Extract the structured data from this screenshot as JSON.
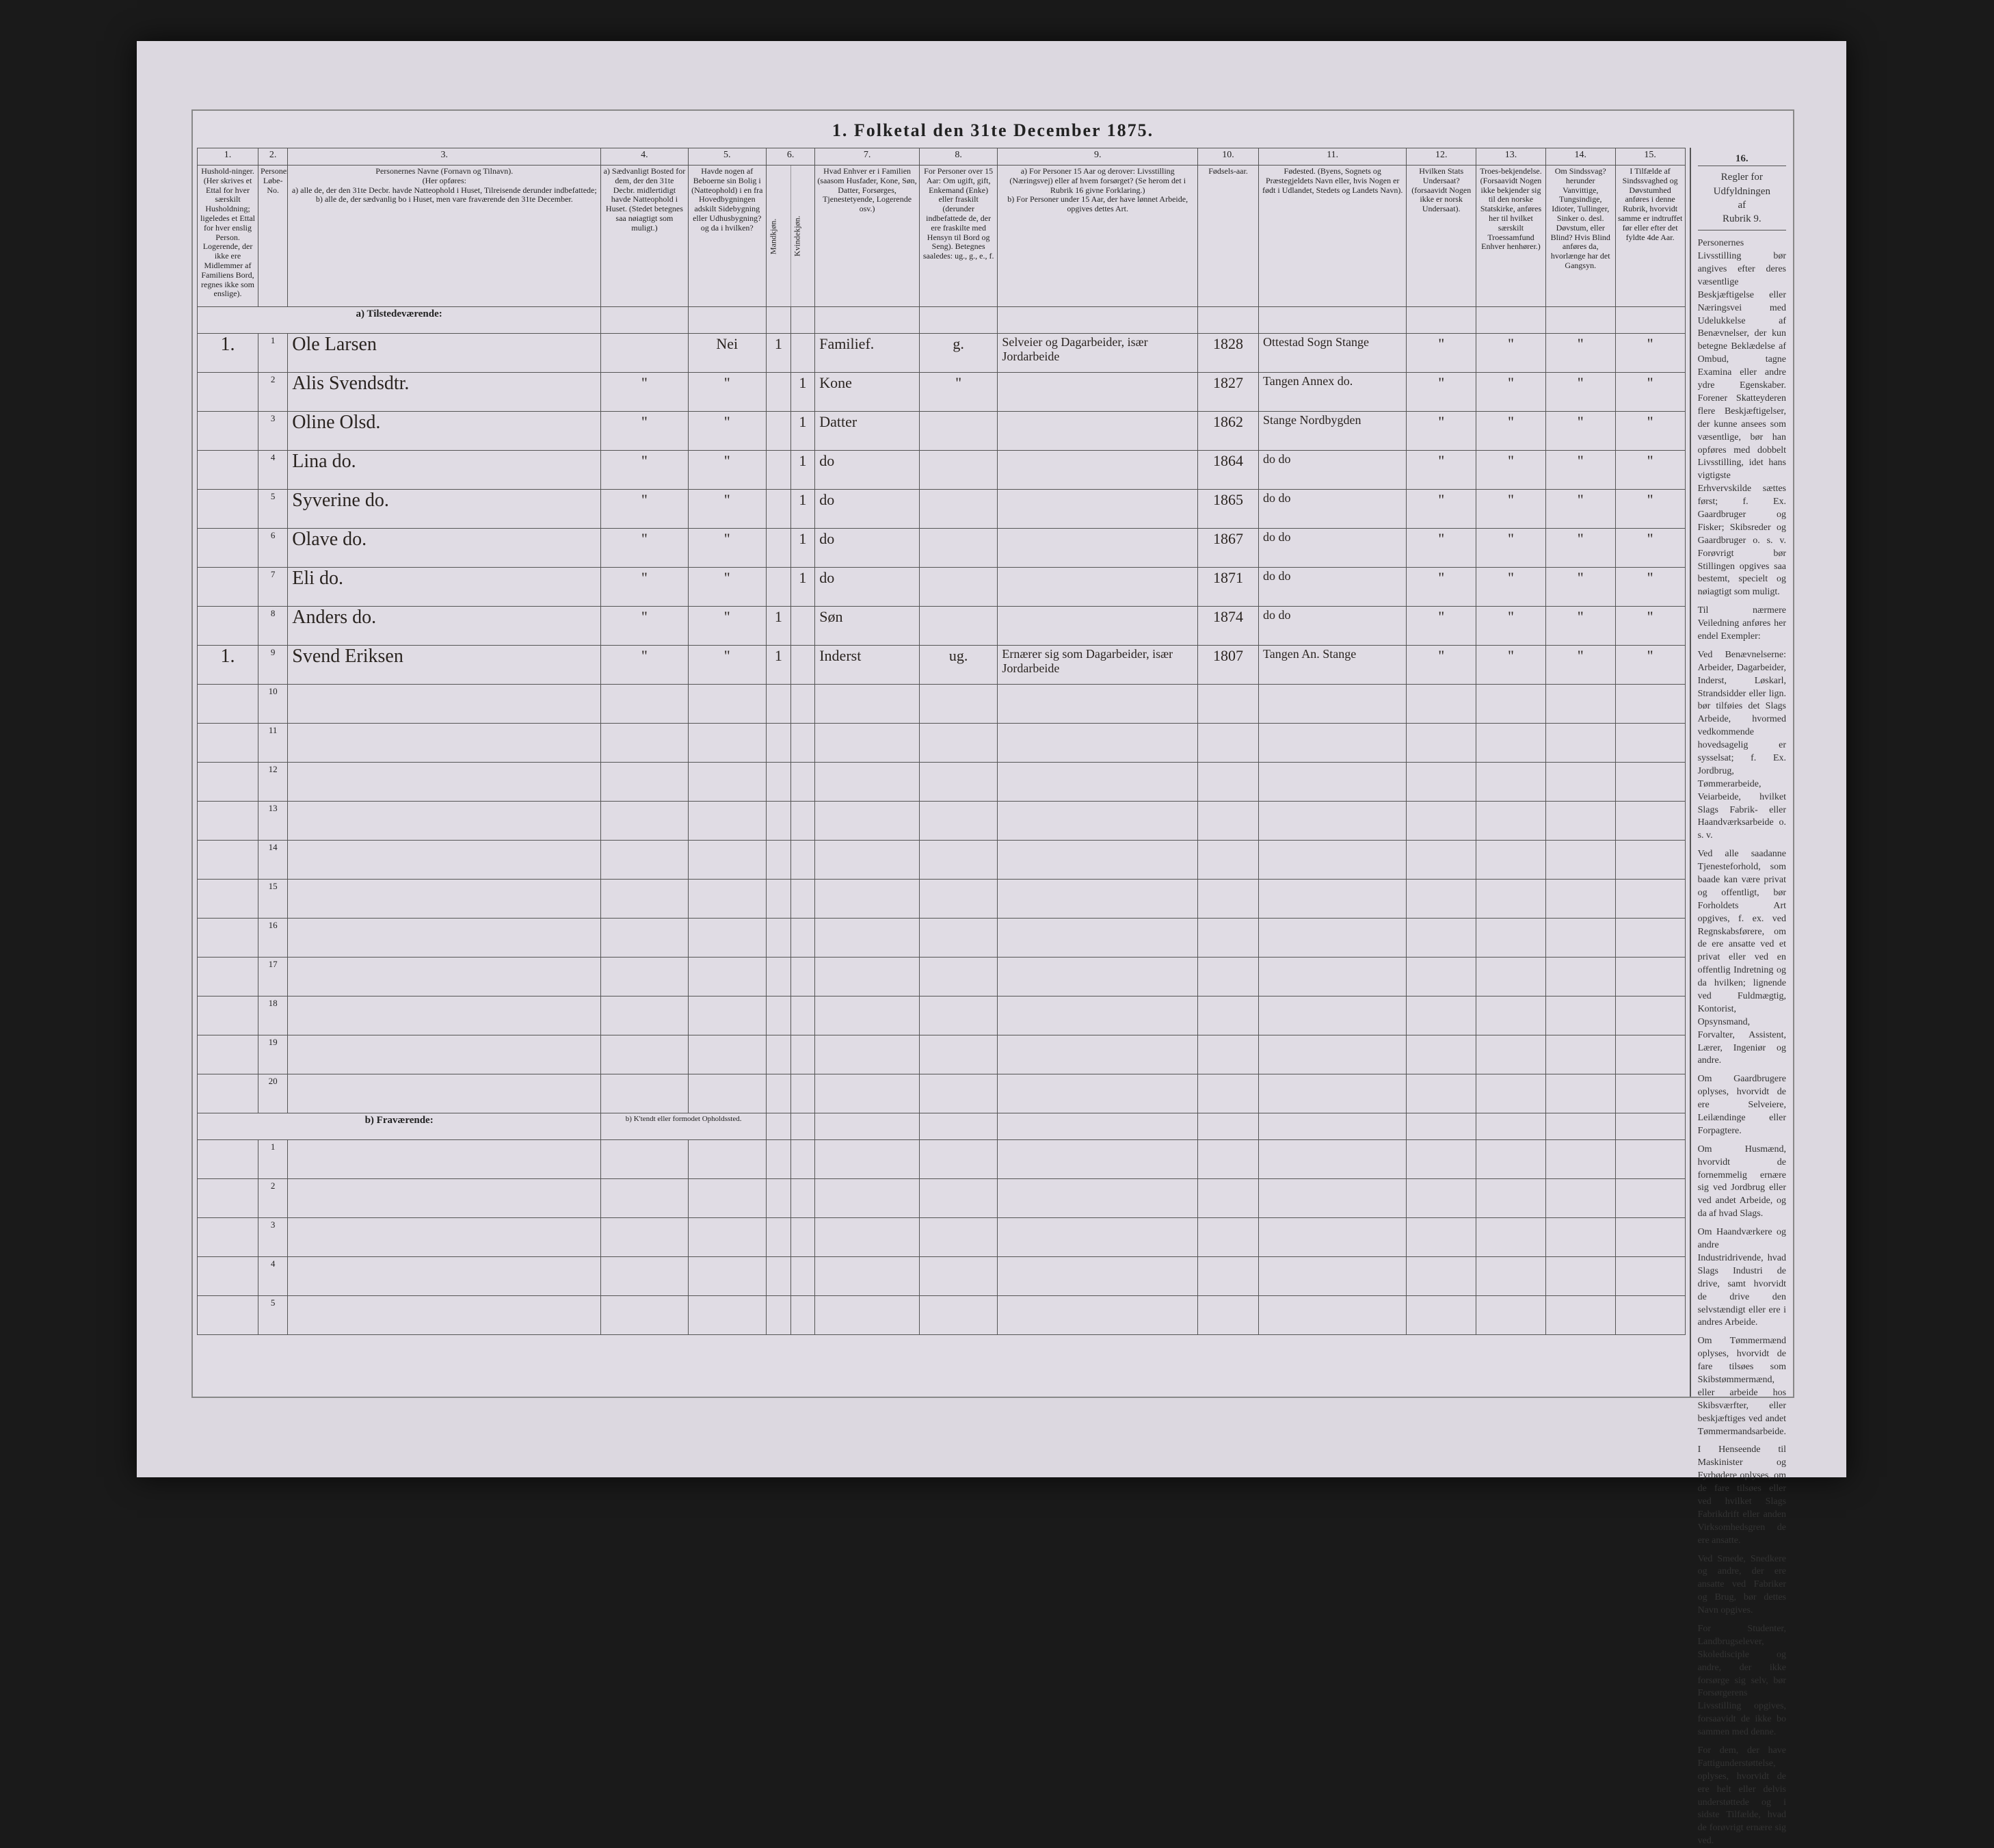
{
  "title": "1.  Folketal den 31te December 1875.",
  "columns_numbers": [
    "1.",
    "2.",
    "3.",
    "4.",
    "5.",
    "6.",
    "7.",
    "8.",
    "9.",
    "10.",
    "11.",
    "12.",
    "13.",
    "14.",
    "15.",
    "16."
  ],
  "columns": {
    "c1": "Hushold-ninger. (Her skrives et Ettal for hver særskilt Husholdning; ligeledes et Ettal for hver enslig Person. Logerende, der ikke ere Midlemmer af Familiens Bord, regnes ikke som enslige).",
    "c2": "Personernes Løbe-No.",
    "c3": "Personernes Navne (Fornavn og Tilnavn).\n(Her opføres:\na) alle de, der den 31te Decbr. havde Natteophold i Huset, Tilreisende derunder indbefattede;\nb) alle de, der sædvanlig bo i Huset, men vare fraværende den 31te December.",
    "c4": "a) Sædvanligt Bosted for dem, der den 31te Decbr. midlertidigt havde Natteophold i Huset. (Stedet betegnes saa nøiagtigt som muligt.)",
    "c5": "Havde nogen af Beboerne sin Bolig i (Natteophold) i en fra Hovedbygningen adskilt Sidebygning eller Udhusbygning? og da i hvilken?",
    "c6": "Kjøn. Her sættes et Ettal i vedkommende Rubrik.",
    "c6a": "Mandkjøn.",
    "c6b": "Kvindekjøn.",
    "c7": "Hvad Enhver er i Familien (saasom Husfader, Kone, Søn, Datter, Forsørges, Tjenestetyende, Logerende osv.)",
    "c8": "For Personer over 15 Aar: Om ugift, gift, Enkemand (Enke) eller fraskilt (derunder indbefattede de, der ere fraskilte med Hensyn til Bord og Seng). Betegnes saaledes: ug., g., e., f.",
    "c9": "a) For Personer 15 Aar og derover: Livsstilling (Næringsvej) eller af hvem forsørget? (Se herom det i Rubrik 16 givne Forklaring.)\nb) For Personer under 15 Aar, der have lønnet Arbeide, opgives dettes Art.",
    "c10": "Fødsels-aar.",
    "c11": "Fødested. (Byens, Sognets og Præstegjeldets Navn eller, hvis Nogen er født i Udlandet, Stedets og Landets Navn).",
    "c12": "Hvilken Stats Undersaat? (forsaavidt Nogen ikke er norsk Undersaat).",
    "c13": "Troes-bekjendelse. (Forsaavidt Nogen ikke bekjender sig til den norske Statskirke, anføres her til hvilket særskilt Troessamfund Enhver henhører.)",
    "c14": "Om Sindssvag? herunder Vanvittige, Tungsindige, Idioter, Tullinger, Sinker o. desl. Døvstum, eller Blind? Hvis Blind anføres da, hvorlænge har det Gangsyn.",
    "c15": "I Tilfælde af Sindssvaghed og Døvstumhed anføres i denne Rubrik, hvorvidt samme er indtruffet før eller efter det fyldte 4de Aar."
  },
  "col16_head": "Regler for Udfyldningen\naf\nRubrik 9.",
  "sections": {
    "present": "a) Tilstedeværende:",
    "absent": "b) Fraværende:",
    "absent_note": "b) K'tendt eller formodet Opholdssted."
  },
  "rows": [
    {
      "hh": "1.",
      "no": "1",
      "name": "Ole Larsen",
      "c4": "",
      "c5": "Nei",
      "m": "1",
      "k": "",
      "fam": "Familief.",
      "civ": "g.",
      "occ": "Selveier og Dagarbeider, især Jordarbeide",
      "year": "1828",
      "birthplace": "Ottestad Sogn Stange",
      "c12": "\"",
      "c13": "\"",
      "c14": "\"",
      "c15": "\""
    },
    {
      "hh": "",
      "no": "2",
      "name": "Alis Svendsdtr.",
      "c4": "\"",
      "c5": "\"",
      "m": "",
      "k": "1",
      "fam": "Kone",
      "civ": "\"",
      "occ": "",
      "year": "1827",
      "birthplace": "Tangen Annex do.",
      "c12": "\"",
      "c13": "\"",
      "c14": "\"",
      "c15": "\""
    },
    {
      "hh": "",
      "no": "3",
      "name": "Oline Olsd.",
      "c4": "\"",
      "c5": "\"",
      "m": "",
      "k": "1",
      "fam": "Datter",
      "civ": "",
      "occ": "",
      "year": "1862",
      "birthplace": "Stange Nordbygden",
      "c12": "\"",
      "c13": "\"",
      "c14": "\"",
      "c15": "\""
    },
    {
      "hh": "",
      "no": "4",
      "name": "Lina do.",
      "c4": "\"",
      "c5": "\"",
      "m": "",
      "k": "1",
      "fam": "do",
      "civ": "",
      "occ": "",
      "year": "1864",
      "birthplace": "do  do",
      "c12": "\"",
      "c13": "\"",
      "c14": "\"",
      "c15": "\""
    },
    {
      "hh": "",
      "no": "5",
      "name": "Syverine do.",
      "c4": "\"",
      "c5": "\"",
      "m": "",
      "k": "1",
      "fam": "do",
      "civ": "",
      "occ": "",
      "year": "1865",
      "birthplace": "do  do",
      "c12": "\"",
      "c13": "\"",
      "c14": "\"",
      "c15": "\""
    },
    {
      "hh": "",
      "no": "6",
      "name": "Olave do.",
      "c4": "\"",
      "c5": "\"",
      "m": "",
      "k": "1",
      "fam": "do",
      "civ": "",
      "occ": "",
      "year": "1867",
      "birthplace": "do  do",
      "c12": "\"",
      "c13": "\"",
      "c14": "\"",
      "c15": "\""
    },
    {
      "hh": "",
      "no": "7",
      "name": "Eli do.",
      "c4": "\"",
      "c5": "\"",
      "m": "",
      "k": "1",
      "fam": "do",
      "civ": "",
      "occ": "",
      "year": "1871",
      "birthplace": "do  do",
      "c12": "\"",
      "c13": "\"",
      "c14": "\"",
      "c15": "\""
    },
    {
      "hh": "",
      "no": "8",
      "name": "Anders do.",
      "c4": "\"",
      "c5": "\"",
      "m": "1",
      "k": "",
      "fam": "Søn",
      "civ": "",
      "occ": "",
      "year": "1874",
      "birthplace": "do  do",
      "c12": "\"",
      "c13": "\"",
      "c14": "\"",
      "c15": "\""
    },
    {
      "hh": "1.",
      "no": "9",
      "name": "Svend Eriksen",
      "c4": "\"",
      "c5": "\"",
      "m": "1",
      "k": "",
      "fam": "Inderst",
      "civ": "ug.",
      "occ": "Ernærer sig som Dagarbeider, især Jordarbeide",
      "year": "1807",
      "birthplace": "Tangen An. Stange",
      "c12": "\"",
      "c13": "\"",
      "c14": "\"",
      "c15": "\""
    }
  ],
  "blank_numbers_present": [
    "10",
    "11",
    "12",
    "13",
    "14",
    "15",
    "16",
    "17",
    "18",
    "19",
    "20"
  ],
  "blank_numbers_absent": [
    "1",
    "2",
    "3",
    "4",
    "5"
  ],
  "side_text": [
    "Personernes Livsstilling bør angives efter deres væsentlige Beskjæftigelse eller Næringsvei med Udelukkelse af Benævnelser, der kun betegne Beklædelse af Ombud, tagne Examina eller andre ydre Egenskaber. Forener Skatteyderen flere Beskjæftigelser, der kunne ansees som væsentlige, bør han opføres med dobbelt Livsstilling, idet hans vigtigste Erhvervskilde sættes først; f. Ex. Gaardbruger og Fisker; Skibsreder og Gaardbruger o. s. v. Forøvrigt bør Stillingen opgives saa bestemt, specielt og nøiagtigt som muligt.",
    "Til nærmere Veiledning anføres her endel Exempler:",
    "Ved Benævnelserne: Arbeider, Dagarbeider, Inderst, Løskarl, Strandsidder eller lign. bør tilføies det Slags Arbeide, hvormed vedkommende hovedsagelig er sysselsat; f. Ex. Jordbrug, Tømmerarbeide, Veiarbeide, hvilket Slags Fabrik- eller Haandværksarbeide o. s. v.",
    "Ved alle saadanne Tjenesteforhold, som baade kan være privat og offentligt, bør Forholdets Art opgives, f. ex. ved Regnskabsførere, om de ere ansatte ved et privat eller ved en offentlig Indretning og da hvilken; lignende ved Fuldmægtig, Kontorist, Opsynsmand, Forvalter, Assistent, Lærer, Ingeniør og andre.",
    "Om Gaardbrugere oplyses, hvorvidt de ere Selveiere, Leilændinge eller Forpagtere.",
    "Om Husmænd, hvorvidt de fornemmelig ernære sig ved Jordbrug eller ved andet Arbeide, og da af hvad Slags.",
    "Om Haandværkere og andre Industridrivende, hvad Slags Industri de drive, samt hvorvidt de drive den selvstændigt eller ere i andres Arbeide.",
    "Om Tømmermænd oplyses, hvorvidt de fare tilsøes som Skibstømmermænd, eller arbeide hos Skibsværfter, eller beskjæftiges ved andet Tømmermandsarbeide.",
    "I Henseende til Maskinister og Fyrbødere oplyses, om de fare tilsøes eller ved hvilket Slags Fabrikdrift eller anden Virksomhedsgren de ere ansatte.",
    "Ved Smede, Snedkere og andre, der ere ansatte ved Fabriker og Brug, bør dettes Navn opgives.",
    "For Studenter, Landbrugselever, Skoledisciple og andre, der ikke forsørge sig selv, bør Forsørgerens Livsstilling opgives, forsaavidt de ikke bo sammen med denne.",
    "For dem, der have Fattigunderstøttelse, oplyses, hvorvidt de ere helt eller delvis understøttede og i sidste Tilfælde, hvad de forøvrigt ernære sig ved."
  ]
}
